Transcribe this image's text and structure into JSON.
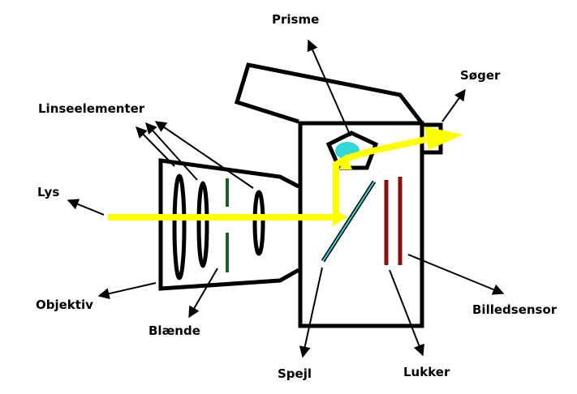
{
  "labels": {
    "prisme": "Prisme",
    "soeger": "Søger",
    "linseelementer": "Linseelementer",
    "lys": "Lys",
    "objektiv": "Objektiv",
    "blaende": "Blænde",
    "spejl": "Spejl",
    "lukker": "Lukker",
    "billedsensor": "Billedsensor"
  },
  "colors": {
    "outline": "#000000",
    "light_beam": "#ffff00",
    "prism_glow": "#33d6d6",
    "mirror": "#1a6a6a",
    "aperture": "#1e5a2a",
    "shutter": "#8b1010"
  }
}
